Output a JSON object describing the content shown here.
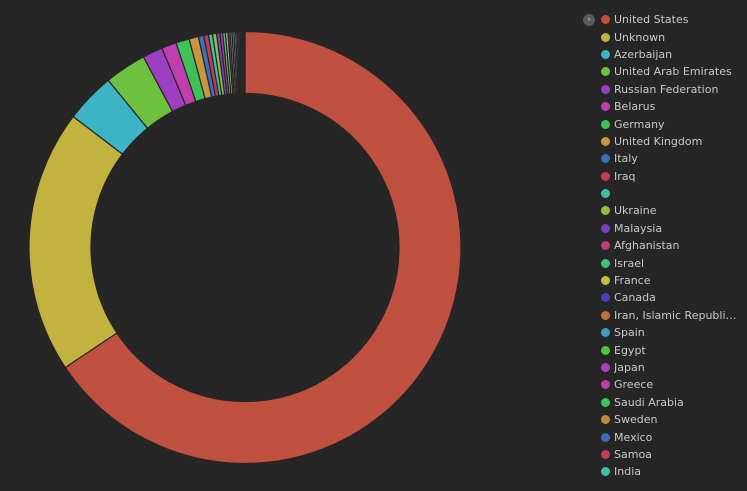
{
  "legend": {
    "toggle_icon": "chevron-right-icon"
  },
  "chart_data": {
    "type": "pie",
    "variant": "donut",
    "legend_position": "right",
    "categories": [
      "United States",
      "Unknown",
      "Azerbaijan",
      "United Arab Emirates",
      "Russian Federation",
      "Belarus",
      "Germany",
      "United Kingdom",
      "Italy",
      "Iraq",
      "",
      "Ukraine",
      "Malaysia",
      "Afghanistan",
      "Israel",
      "France",
      "Canada",
      "Iran, Islamic Republic ...",
      "Spain",
      "Egypt",
      "Japan",
      "Greece",
      "Saudi Arabia",
      "Sweden",
      "Mexico",
      "Samoa",
      "India"
    ],
    "values": [
      65.2,
      19.6,
      3.7,
      3.1,
      1.5,
      1.1,
      1.0,
      0.7,
      0.4,
      0.35,
      0.3,
      0.3,
      0.25,
      0.2,
      0.2,
      0.18,
      0.16,
      0.15,
      0.14,
      0.13,
      0.12,
      0.11,
      0.1,
      0.1,
      0.09,
      0.08,
      0.08
    ],
    "colors": [
      "#c0503f",
      "#c2b340",
      "#3db3c6",
      "#6ec03f",
      "#9c3fc0",
      "#c03fae",
      "#3fc058",
      "#c6973f",
      "#3f6ec0",
      "#c03f4e",
      "#3fc0ae",
      "#8cc03f",
      "#7a3fc0",
      "#c03f75",
      "#3fc078",
      "#c0c03f",
      "#4a3fc0",
      "#c0703f",
      "#3f9cc0",
      "#58c03f",
      "#ae3fc0",
      "#c03fa6",
      "#3fc05a",
      "#c0873f",
      "#3f6ac0",
      "#c03f55",
      "#3fc0a0"
    ]
  }
}
